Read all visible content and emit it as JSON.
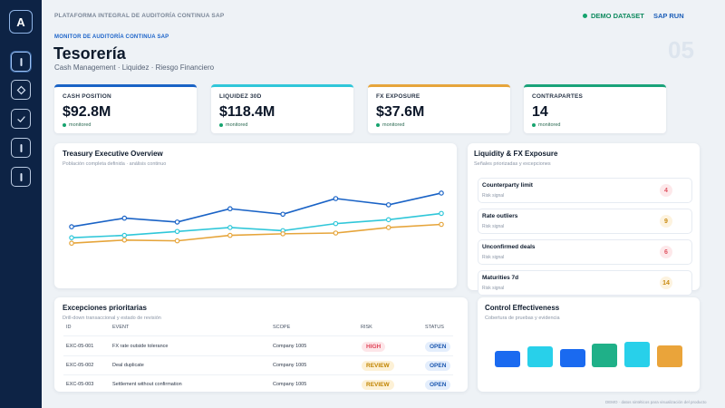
{
  "app": {
    "logo_letter": "A",
    "platform_title": "PLATAFORMA INTEGRAL DE AUDITORÍA CONTINUA SAP",
    "demo_label": "DEMO DATASET",
    "sap_run_label": "SAP RUN"
  },
  "sidebar": {
    "items": [
      {
        "icon": "bar-icon",
        "active": true
      },
      {
        "icon": "diamond-icon",
        "active": false
      },
      {
        "icon": "check-icon",
        "active": false
      },
      {
        "icon": "bar-icon",
        "active": false
      },
      {
        "icon": "bar-icon",
        "active": false
      }
    ]
  },
  "header": {
    "section_label": "MONITOR DE AUDITORÍA CONTINUA SAP",
    "title": "Tesorería",
    "subtitle": "Cash Management · Liquidez · Riesgo Financiero",
    "page_number": "05"
  },
  "kpis": [
    {
      "label": "CASH POSITION",
      "value": "$92.8M",
      "status": "monitored",
      "color": "#1a63c6"
    },
    {
      "label": "LIQUIDEZ 30D",
      "value": "$118.4M",
      "status": "monitored",
      "color": "#30c7d9"
    },
    {
      "label": "FX EXPOSURE",
      "value": "$37.6M",
      "status": "monitored",
      "color": "#e6a53b"
    },
    {
      "label": "CONTRAPARTES",
      "value": "14",
      "status": "monitored",
      "color": "#1aa37a"
    }
  ],
  "overview": {
    "title": "Treasury Executive Overview",
    "subtitle": "Población completa definida · análisis continuo"
  },
  "chart_data": {
    "type": "line",
    "x": [
      1,
      2,
      3,
      4,
      5,
      6,
      7,
      8
    ],
    "series": [
      {
        "values": [
          52,
          63,
          58,
          75,
          68,
          88,
          80,
          95
        ],
        "color": "#1a63c6"
      },
      {
        "values": [
          38,
          41,
          46,
          51,
          47,
          56,
          61,
          69
        ],
        "color": "#30c7d9"
      },
      {
        "values": [
          31,
          35,
          34,
          41,
          43,
          44,
          51,
          55
        ],
        "color": "#e6a53b"
      }
    ],
    "ylim": [
      0,
      110
    ],
    "grid": false
  },
  "liquidity": {
    "title": "Liquidity & FX Exposure",
    "subtitle": "Señales priorizadas y excepciones",
    "items": [
      {
        "name": "Counterparty limit",
        "note": "Risk signal",
        "value": "4",
        "fg": "#e05563",
        "bg": "#fde8ea"
      },
      {
        "name": "Rate outliers",
        "note": "Risk signal",
        "value": "9",
        "fg": "#c98a10",
        "bg": "#fdf3df"
      },
      {
        "name": "Unconfirmed deals",
        "note": "Risk signal",
        "value": "6",
        "fg": "#e05563",
        "bg": "#fde8ea"
      },
      {
        "name": "Maturities 7d",
        "note": "Risk signal",
        "value": "14",
        "fg": "#c98a10",
        "bg": "#fdf3df"
      }
    ]
  },
  "exceptions": {
    "title": "Excepciones prioritarias",
    "subtitle": "Drill-down transaccional y estado de revisión",
    "columns": [
      "ID",
      "EVENT",
      "SCOPE",
      "RISK",
      "STATUS"
    ],
    "rows": [
      {
        "id": "EXC-05-001",
        "event": "FX rate outside tolerance",
        "scope": "Company 1005",
        "risk": "HIGH",
        "status": "OPEN"
      },
      {
        "id": "EXC-05-002",
        "event": "Deal duplicate",
        "scope": "Company 1005",
        "risk": "REVIEW",
        "status": "OPEN"
      },
      {
        "id": "EXC-05-003",
        "event": "Settlement without confirmation",
        "scope": "Company 1005",
        "risk": "REVIEW",
        "status": "OPEN"
      }
    ],
    "risk_colors": {
      "HIGH": {
        "fg": "#e0465a",
        "bg": "#fde6e9"
      },
      "REVIEW": {
        "fg": "#c18400",
        "bg": "#fdf1d6"
      }
    }
  },
  "control": {
    "title": "Control Effectiveness",
    "subtitle": "Cobertura de pruebas y evidencia",
    "bars": [
      {
        "level": 0.7,
        "color": "#1a6af0"
      },
      {
        "level": 0.9,
        "color": "#28d0ea"
      },
      {
        "level": 0.78,
        "color": "#1a6af0"
      },
      {
        "level": 1.0,
        "color": "#1fb088"
      },
      {
        "level": 1.08,
        "color": "#28d0ea"
      },
      {
        "level": 0.92,
        "color": "#eaa43a"
      }
    ]
  },
  "footer": {
    "note": "DEMO · datos sintéticos para visualización del producto"
  }
}
